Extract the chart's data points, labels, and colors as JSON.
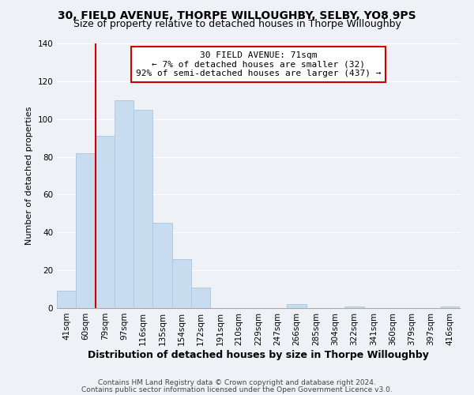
{
  "title_line1": "30, FIELD AVENUE, THORPE WILLOUGHBY, SELBY, YO8 9PS",
  "title_line2": "Size of property relative to detached houses in Thorpe Willoughby",
  "xlabel": "Distribution of detached houses by size in Thorpe Willoughby",
  "ylabel": "Number of detached properties",
  "bar_labels": [
    "41sqm",
    "60sqm",
    "79sqm",
    "97sqm",
    "116sqm",
    "135sqm",
    "154sqm",
    "172sqm",
    "191sqm",
    "210sqm",
    "229sqm",
    "247sqm",
    "266sqm",
    "285sqm",
    "304sqm",
    "322sqm",
    "341sqm",
    "360sqm",
    "379sqm",
    "397sqm",
    "416sqm"
  ],
  "bar_values": [
    9,
    82,
    91,
    110,
    105,
    45,
    26,
    11,
    0,
    0,
    0,
    0,
    2,
    0,
    0,
    1,
    0,
    0,
    0,
    0,
    1
  ],
  "bar_color": "#c8dcf0",
  "bar_edge_color": "#b0c8e0",
  "vline_color": "#cc0000",
  "ylim": [
    0,
    140
  ],
  "yticks": [
    0,
    20,
    40,
    60,
    80,
    100,
    120,
    140
  ],
  "annotation_title": "30 FIELD AVENUE: 71sqm",
  "annotation_line1": "← 7% of detached houses are smaller (32)",
  "annotation_line2": "92% of semi-detached houses are larger (437) →",
  "annotation_box_color": "#ffffff",
  "annotation_box_edge": "#cc0000",
  "footer_line1": "Contains HM Land Registry data © Crown copyright and database right 2024.",
  "footer_line2": "Contains public sector information licensed under the Open Government Licence v3.0.",
  "background_color": "#eef2f7",
  "grid_color": "#ffffff",
  "title1_fontsize": 10,
  "title2_fontsize": 9,
  "ylabel_fontsize": 8,
  "xlabel_fontsize": 9,
  "tick_fontsize": 7.5,
  "footer_fontsize": 6.5,
  "ann_fontsize": 8
}
